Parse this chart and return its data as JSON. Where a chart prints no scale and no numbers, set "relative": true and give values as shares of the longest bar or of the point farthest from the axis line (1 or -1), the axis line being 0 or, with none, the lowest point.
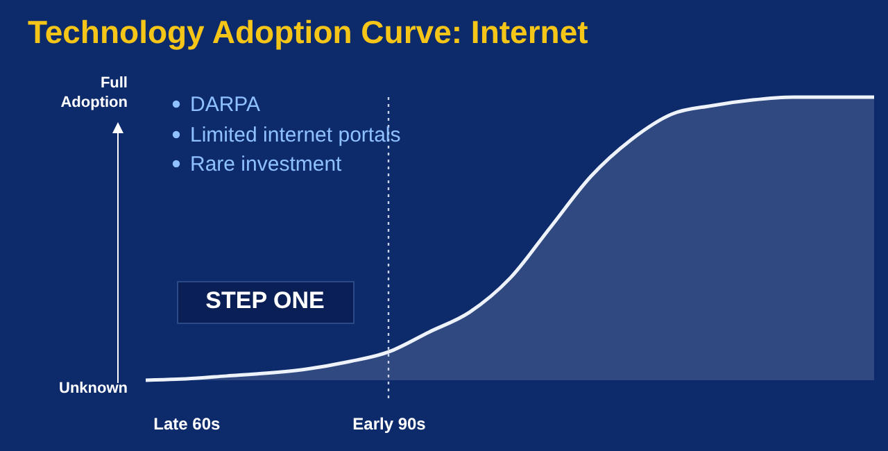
{
  "chart_data": {
    "type": "area",
    "title": "Technology Adoption Curve: Internet",
    "relative": true,
    "categories": [
      null,
      "Late 60s",
      null,
      null,
      null,
      null,
      "Early 90s",
      null,
      null,
      null,
      null,
      null,
      null,
      null,
      null,
      null,
      null,
      null,
      null
    ],
    "series": [
      {
        "color": "#eef3fb",
        "values": [
          0,
          0.005,
          0.015,
          0.025,
          0.04,
          0.065,
          0.1,
          0.17,
          0.24,
          0.36,
          0.54,
          0.72,
          0.85,
          0.94,
          0.97,
          0.99,
          1,
          1,
          1
        ]
      }
    ],
    "ref_lines": [
      {
        "axis": "x",
        "value": "Early 90s",
        "color": "#c8d2e6",
        "line_style": "dotted"
      }
    ],
    "annotations": [
      "Full Adoption",
      "Unknown",
      "DARPA",
      "Limited internet portals",
      "Rare investment",
      "STEP ONE"
    ]
  }
}
